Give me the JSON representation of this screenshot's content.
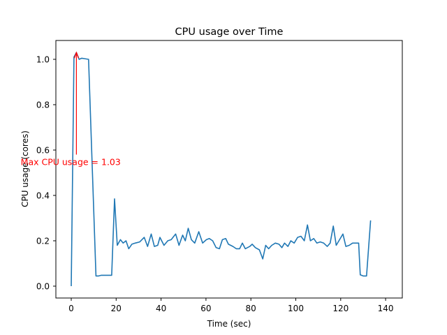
{
  "chart_data": {
    "type": "line",
    "title": "CPU usage over Time",
    "xlabel": "Time (sec)",
    "ylabel": "CPU usage (cores)",
    "xlim": [
      -6.5,
      147
    ],
    "ylim": [
      -0.05,
      1.08
    ],
    "xticks": [
      0,
      20,
      40,
      60,
      80,
      100,
      120,
      140
    ],
    "yticks": [
      0.0,
      0.2,
      0.4,
      0.6,
      0.8,
      1.0
    ],
    "ytick_labels": [
      "0.0",
      "0.2",
      "0.4",
      "0.6",
      "0.8",
      "1.0"
    ],
    "grid": false,
    "line_color": "#1f77b4",
    "annotation": {
      "text": "Max CPU usage = 1.03",
      "color": "#ff0000",
      "xy": [
        2.3,
        1.03
      ],
      "xytext": [
        2.3,
        0.58
      ],
      "text_pos": [
        -22.5,
        0.548
      ]
    },
    "series": [
      {
        "name": "CPU usage",
        "points": [
          [
            0,
            0
          ],
          [
            1.2,
            1.01
          ],
          [
            2.3,
            1.03
          ],
          [
            3.5,
            1.0
          ],
          [
            4.7,
            1.005
          ],
          [
            5.8,
            1.003
          ],
          [
            7.7,
            1.0
          ],
          [
            11,
            0.045
          ],
          [
            12.2,
            0.045
          ],
          [
            13.4,
            0.048
          ],
          [
            15.5,
            0.048
          ],
          [
            18,
            0.048
          ],
          [
            19.3,
            0.385
          ],
          [
            20.5,
            0.18
          ],
          [
            21.9,
            0.205
          ],
          [
            23.1,
            0.19
          ],
          [
            24.4,
            0.2
          ],
          [
            25.6,
            0.165
          ],
          [
            27,
            0.185
          ],
          [
            28.5,
            0.19
          ],
          [
            30.5,
            0.195
          ],
          [
            32.5,
            0.215
          ],
          [
            34,
            0.175
          ],
          [
            35.6,
            0.23
          ],
          [
            37,
            0.175
          ],
          [
            38.5,
            0.18
          ],
          [
            39.5,
            0.215
          ],
          [
            41.3,
            0.18
          ],
          [
            43,
            0.2
          ],
          [
            44.5,
            0.205
          ],
          [
            46.5,
            0.23
          ],
          [
            48,
            0.18
          ],
          [
            49.6,
            0.225
          ],
          [
            50.8,
            0.2
          ],
          [
            52.1,
            0.255
          ],
          [
            53.5,
            0.205
          ],
          [
            55,
            0.19
          ],
          [
            56.8,
            0.24
          ],
          [
            58.5,
            0.19
          ],
          [
            60.2,
            0.205
          ],
          [
            61.5,
            0.21
          ],
          [
            63,
            0.2
          ],
          [
            64.5,
            0.17
          ],
          [
            66,
            0.165
          ],
          [
            67.3,
            0.205
          ],
          [
            68.8,
            0.21
          ],
          [
            70,
            0.185
          ],
          [
            72,
            0.175
          ],
          [
            73.5,
            0.165
          ],
          [
            75,
            0.165
          ],
          [
            76.2,
            0.19
          ],
          [
            77.5,
            0.165
          ],
          [
            79.5,
            0.175
          ],
          [
            80.6,
            0.185
          ],
          [
            82,
            0.17
          ],
          [
            83.8,
            0.16
          ],
          [
            85.3,
            0.12
          ],
          [
            86.6,
            0.18
          ],
          [
            87.9,
            0.165
          ],
          [
            89.3,
            0.18
          ],
          [
            90.9,
            0.19
          ],
          [
            92.5,
            0.185
          ],
          [
            93.8,
            0.17
          ],
          [
            95,
            0.19
          ],
          [
            96.5,
            0.175
          ],
          [
            97.8,
            0.2
          ],
          [
            99.3,
            0.19
          ],
          [
            100.8,
            0.215
          ],
          [
            102.3,
            0.22
          ],
          [
            103.8,
            0.2
          ],
          [
            105.2,
            0.27
          ],
          [
            106.5,
            0.2
          ],
          [
            108,
            0.21
          ],
          [
            109.4,
            0.19
          ],
          [
            110.9,
            0.195
          ],
          [
            112.4,
            0.19
          ],
          [
            114,
            0.175
          ],
          [
            115.3,
            0.19
          ],
          [
            116.7,
            0.265
          ],
          [
            118,
            0.18
          ],
          [
            119.5,
            0.205
          ],
          [
            121,
            0.23
          ],
          [
            122.3,
            0.175
          ],
          [
            123.8,
            0.18
          ],
          [
            125.3,
            0.19
          ],
          [
            126.8,
            0.19
          ],
          [
            128,
            0.19
          ],
          [
            128.7,
            0.05
          ],
          [
            130,
            0.045
          ],
          [
            131.5,
            0.045
          ],
          [
            133.3,
            0.29
          ]
        ]
      }
    ]
  }
}
